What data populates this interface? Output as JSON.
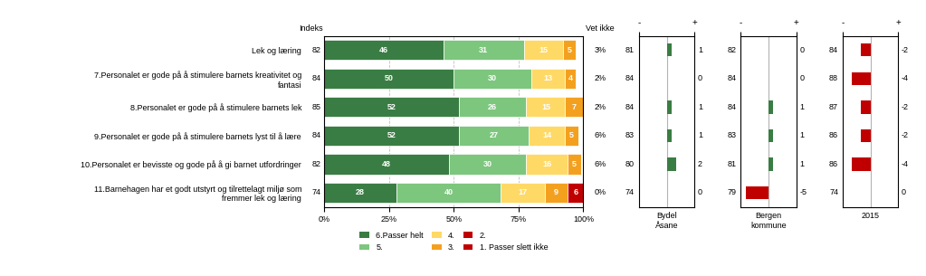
{
  "chart_data": [
    {
      "type": "bar",
      "orientation": "horizontal",
      "stacked": true,
      "data_labels": true,
      "grid": true,
      "legend": "below",
      "categories": [
        "Lek og læring",
        "7.Personalet er gode på å stimulere barnets kreativitet og\nfantasi",
        "8.Personalet er gode på å stimulere barnets lek",
        "9.Personalet er gode på å stimulere barnets lyst til å lære",
        "10.Personalet er bevisste og gode på å gi barnet utfordringer",
        "11.Barnehagen har et godt utstyrt og tilrettelagt miljø som\nfremmer lek og læring"
      ],
      "series": [
        {
          "name": "6.Passer helt",
          "color": "#3a7d44",
          "values": [
            46,
            50,
            52,
            52,
            48,
            28
          ]
        },
        {
          "name": "5.",
          "color": "#7dc67e",
          "values": [
            31,
            30,
            26,
            27,
            30,
            40
          ]
        },
        {
          "name": "4.",
          "color": "#ffd966",
          "values": [
            15,
            13,
            15,
            14,
            16,
            17
          ]
        },
        {
          "name": "3.",
          "color": "#f4a01f",
          "values": [
            5,
            4,
            7,
            5,
            5,
            9
          ]
        },
        {
          "name": "2.",
          "color": "#c00000",
          "values": [
            0,
            0,
            0,
            0,
            0,
            6
          ]
        }
      ],
      "extra_legend": [
        {
          "name": "1. Passer slett ikke",
          "color": "#c00000"
        }
      ],
      "xlim": [
        0,
        100
      ],
      "xticks": [
        {
          "value": 0,
          "label": "0%"
        },
        {
          "value": 25,
          "label": "25%"
        },
        {
          "value": 50,
          "label": "50%"
        },
        {
          "value": 75,
          "label": "75%"
        },
        {
          "value": 100,
          "label": "100%"
        }
      ],
      "index": {
        "label": "Indeks",
        "values": [
          82,
          84,
          85,
          84,
          82,
          74
        ]
      },
      "vet_ikke": {
        "label": "Vet ikke",
        "values": [
          3,
          2,
          2,
          6,
          6,
          0
        ],
        "value_labels": [
          "3%",
          "2%",
          "2%",
          "6%",
          "6%",
          "0%"
        ]
      }
    },
    {
      "type": "bar",
      "orientation": "horizontal",
      "data_labels": true,
      "tick_labels": "x",
      "xlabel": "Bydel\nÅsane",
      "values": [
        1,
        0,
        1,
        1,
        2,
        0
      ],
      "colors": [
        "#3a7d44",
        "#3a7d44",
        "#3a7d44",
        "#3a7d44",
        "#3a7d44",
        "#3a7d44"
      ],
      "index": {
        "values": [
          81,
          84,
          84,
          83,
          80,
          74
        ]
      },
      "xlim": [
        -6,
        6
      ],
      "xticks": [
        {
          "value": -6,
          "label": "-"
        },
        {
          "value": 6,
          "label": "+"
        }
      ]
    },
    {
      "type": "bar",
      "orientation": "horizontal",
      "data_labels": true,
      "tick_labels": "x",
      "xlabel": "Bergen\nkommune",
      "values": [
        0,
        0,
        1,
        1,
        1,
        -5
      ],
      "colors": [
        "#3a7d44",
        "#3a7d44",
        "#3a7d44",
        "#3a7d44",
        "#3a7d44",
        "#c00000"
      ],
      "index": {
        "values": [
          82,
          84,
          84,
          83,
          81,
          79
        ]
      },
      "xlim": [
        -6,
        6
      ],
      "xticks": [
        {
          "value": -6,
          "label": "-"
        },
        {
          "value": 6,
          "label": "+"
        }
      ]
    },
    {
      "type": "bar",
      "orientation": "horizontal",
      "data_labels": true,
      "tick_labels": "x",
      "xlabel": "2015",
      "values": [
        -2,
        -4,
        -2,
        -2,
        -4,
        0
      ],
      "colors": [
        "#c00000",
        "#c00000",
        "#c00000",
        "#c00000",
        "#c00000",
        "#3a7d44"
      ],
      "index": {
        "values": [
          84,
          88,
          87,
          86,
          86,
          74
        ]
      },
      "xlim": [
        -6,
        6
      ],
      "xticks": [
        {
          "value": -6,
          "label": "-"
        },
        {
          "value": 6,
          "label": "+"
        }
      ]
    }
  ]
}
